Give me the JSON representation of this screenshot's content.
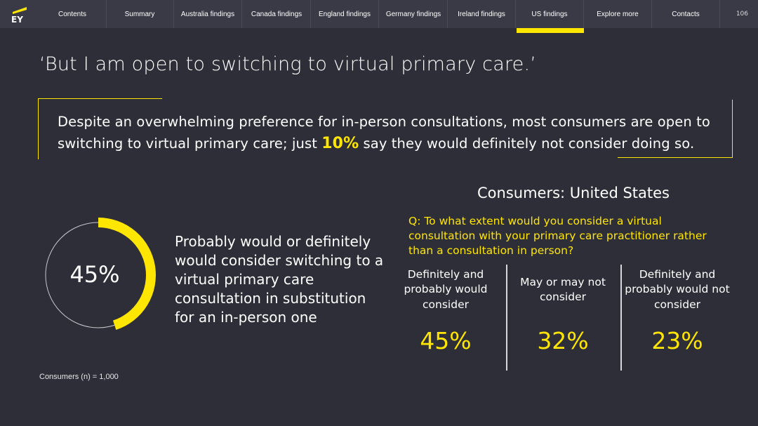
{
  "nav": {
    "logo_text": "EY",
    "items": [
      {
        "label": "Contents"
      },
      {
        "label": "Summary"
      },
      {
        "label": "Australia findings"
      },
      {
        "label": "Canada findings"
      },
      {
        "label": "England findings"
      },
      {
        "label": "Germany findings"
      },
      {
        "label": "Ireland findings"
      },
      {
        "label": "US findings",
        "active": true
      },
      {
        "label": "Explore more"
      },
      {
        "label": "Contacts"
      }
    ],
    "page_number": "106"
  },
  "headline": "‘But I am open to switching to virtual primary care.’",
  "callout": {
    "text_before": "Despite an overwhelming preference for in-person consultations, most consumers are open to switching to virtual primary care; just ",
    "highlight": "10%",
    "text_after": " say they would definitely not consider doing so."
  },
  "donut": {
    "value_label": "45%",
    "fraction": 0.45,
    "description": "Probably would or definitely would consider switching to a virtual primary care consultation in substitution for an in-person one"
  },
  "sample_note": "Consumers (n) = 1,000",
  "panel": {
    "title": "Consumers: United States",
    "question": "Q: To what extent would you consider a virtual consultation with your primary care practitioner rather than a consultation in person?",
    "columns": [
      {
        "label": "Definitely and probably would consider",
        "value": "45%"
      },
      {
        "label": "May or may not consider",
        "value": "32%"
      },
      {
        "label": "Definitely and probably would not consider",
        "value": "23%"
      }
    ]
  },
  "colors": {
    "background": "#2e2e38",
    "topbar": "#3a3a46",
    "accent": "#ffe600",
    "ring_track": "#c8c8cc"
  }
}
